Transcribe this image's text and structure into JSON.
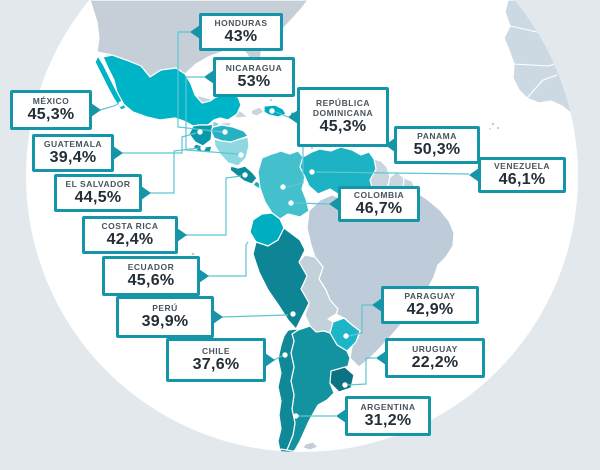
{
  "colors": {
    "page_bg": "#e3e8ed",
    "globe_ocean": "#ffffff",
    "label_border": "#1596a8",
    "leader_line": "#5ec6d2",
    "anchor_dot": "#ffffff",
    "country_border": "#ffffff",
    "name_text": "#475560",
    "value_text": "#222e38",
    "fills": {
      "us": "#c6cfd7",
      "mexico": "#00b4c7",
      "baja-california": "#00b4c7",
      "cuba": "#c9d4dc",
      "jamaica": "#c9d4dc",
      "haiti": "#c9d4dc",
      "bahamas": "#c9d4dc",
      "dominican-republic": "#00adc0",
      "puerto-rico": "#25b2c2",
      "lesser-antilles": "#c3ced8",
      "trinidad": "#c3ced8",
      "guatemala": "#0999ab",
      "belize": "#82d4dd",
      "honduras": "#27b2c3",
      "el-salvador": "#0999ab",
      "nicaragua": "#8fd8e0",
      "costa-rica": "#0e8c9c",
      "panama": "#1fadbe",
      "colombia": "#44bfcc",
      "venezuela": "#1db2c4",
      "guyana": "#c9d6df",
      "suriname": "#c9d6df",
      "french-guiana": "#c9d6df",
      "ecuador": "#00aec2",
      "peru": "#0e8594",
      "brazil": "#bdccd8",
      "bolivia": "#c3d1db",
      "paraguay": "#1db6c8",
      "uruguay": "#0b7384",
      "argentina": "#13929f",
      "chile": "#0f8897",
      "tierra-del-fuego": "#0f8897",
      "falklands": "#c3ced8",
      "south-georgia": "#c3ced8",
      "africa": "#cdd9e2",
      "galapagos": "#c3ced8",
      "cape-verde": "#c3ced8"
    }
  },
  "labels": [
    {
      "id": "honduras",
      "name": "HONDURAS",
      "value": "43%"
    },
    {
      "id": "nicaragua",
      "name": "NICARAGUA",
      "value": "53%"
    },
    {
      "id": "mexico",
      "name": "MÉXICO",
      "value": "45,3%"
    },
    {
      "id": "repdom",
      "name": "REPÚBLICA DOMINICANA",
      "value": "45,3%"
    },
    {
      "id": "panama",
      "name": "PANAMA",
      "value": "50,3%"
    },
    {
      "id": "guatemala",
      "name": "GUATEMALA",
      "value": "39,4%"
    },
    {
      "id": "venezuela",
      "name": "VENEZUELA",
      "value": "46,1%"
    },
    {
      "id": "elsalvador",
      "name": "EL SALVADOR",
      "value": "44,5%"
    },
    {
      "id": "colombia",
      "name": "COLOMBIA",
      "value": "46,7%"
    },
    {
      "id": "costarica",
      "name": "COSTA RICA",
      "value": "42,4%"
    },
    {
      "id": "ecuador",
      "name": "ECUADOR",
      "value": "45,6%"
    },
    {
      "id": "peru",
      "name": "PERÚ",
      "value": "39,9%"
    },
    {
      "id": "chile",
      "name": "CHILE",
      "value": "37,6%"
    },
    {
      "id": "paraguay",
      "name": "PARAGUAY",
      "value": "42,9%"
    },
    {
      "id": "uruguay",
      "name": "URUGUAY",
      "value": "22,2%"
    },
    {
      "id": "argentina",
      "name": "ARGENTINA",
      "value": "31,2%"
    }
  ],
  "chart_data": {
    "type": "map_labels",
    "unit": "%",
    "series": [
      {
        "country": "Honduras",
        "value": 43
      },
      {
        "country": "Nicaragua",
        "value": 53
      },
      {
        "country": "México",
        "value": 45.3
      },
      {
        "country": "República Dominicana",
        "value": 45.3
      },
      {
        "country": "Panama",
        "value": 50.3
      },
      {
        "country": "Guatemala",
        "value": 39.4
      },
      {
        "country": "Venezuela",
        "value": 46.1
      },
      {
        "country": "El Salvador",
        "value": 44.5
      },
      {
        "country": "Colombia",
        "value": 46.7
      },
      {
        "country": "Costa Rica",
        "value": 42.4
      },
      {
        "country": "Ecuador",
        "value": 45.6
      },
      {
        "country": "Perú",
        "value": 39.9
      },
      {
        "country": "Chile",
        "value": 37.6
      },
      {
        "country": "Paraguay",
        "value": 42.9
      },
      {
        "country": "Uruguay",
        "value": 22.2
      },
      {
        "country": "Argentina",
        "value": 31.2
      }
    ]
  }
}
